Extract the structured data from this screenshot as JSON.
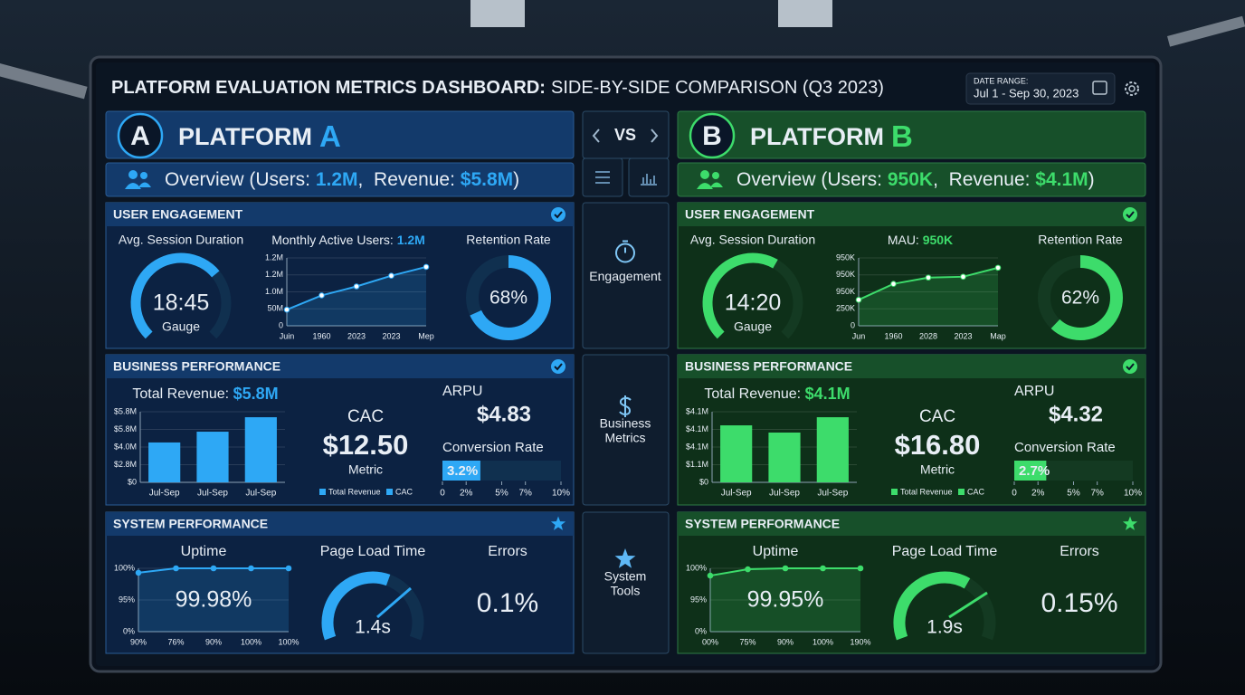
{
  "header": {
    "title_bold": "PLATFORM EVALUATION METRICS DASHBOARD:",
    "title_rest": "SIDE-BY-SIDE COMPARISON (Q3 2023)",
    "date_range_label": "DATE RANGE:",
    "date_range": "Jul 1 - Sep 30, 2023"
  },
  "nav": {
    "vs": "VS",
    "items": [
      [
        "Engagement"
      ],
      [
        "Business",
        "Metrics"
      ],
      [
        "System",
        "Tools"
      ]
    ]
  },
  "platforms": [
    {
      "badge": "A",
      "name": "PLATFORM",
      "letter": "A",
      "color": "#2ea8f5",
      "overview": {
        "prefix": "Overview (Users: ",
        "users": "1.2M",
        "middle": ",  Revenue: ",
        "revenue": "$5.8M",
        "suffix": ")"
      },
      "user_engagement": {
        "title": "USER ENGAGEMENT",
        "session": {
          "label": "Avg. Session Duration",
          "value": "18:45",
          "caption": "Gauge"
        },
        "mau": {
          "label": "Monthly Active Users: ",
          "value": "1.2M",
          "chart": {
            "type": "line",
            "categories": [
              "Juin",
              "1960",
              "2023",
              "2023",
              "Mep"
            ],
            "values": [
              0.95,
              1.79,
              2.32,
              2.95,
              3.47
            ],
            "ylim": [
              0,
              4
            ],
            "yticks": [
              0,
              {
                "value": 1,
                "label": "50M"
              },
              {
                "value": 2,
                "label": "1.0M"
              },
              {
                "value": 3,
                "label": "1.2M"
              },
              {
                "value": 4,
                "label": "1.2M"
              }
            ]
          }
        },
        "retention": {
          "label": "Retention Rate",
          "value": 68,
          "value_label": "68%"
        }
      },
      "business_performance": {
        "title": "BUSINESS PERFORMANCE",
        "revenue": {
          "label": "Total Revenue: ",
          "value": "$5.8M",
          "chart": {
            "type": "bar",
            "categories": [
              "Jul-Sep",
              "Jul-Sep",
              "Jul-Sep"
            ],
            "values": [
              2.26,
              2.87,
              3.69
            ],
            "ylim": [
              0,
              4
            ],
            "yticks": [
              {
                "value": 0,
                "label": "$0"
              },
              {
                "value": 1,
                "label": "$2.8M"
              },
              {
                "value": 2,
                "label": "$4.0M"
              },
              {
                "value": 3,
                "label": "$5.8M"
              },
              {
                "value": 4,
                "label": "$5.8M"
              }
            ],
            "legend": [
              "Total Revenue",
              "CAC"
            ]
          }
        },
        "cac": {
          "label": "CAC",
          "value": "$12.50",
          "caption": "Metric"
        },
        "arpu": {
          "label": "ARPU",
          "value": "$4.83"
        },
        "conversion": {
          "label": "Conversion Rate",
          "value": 3.2,
          "value_label": "3.2%",
          "xlim": [
            0,
            10
          ],
          "xticks": [
            0,
            {
              "value": 2,
              "label": "2%"
            },
            {
              "value": 5,
              "label": "5%"
            },
            {
              "value": 7,
              "label": "7%"
            },
            {
              "value": 10,
              "label": "10%"
            }
          ]
        }
      },
      "system_performance": {
        "title": "SYSTEM PERFORMANCE",
        "uptime": {
          "label": "Uptime",
          "value": "99.98%",
          "chart": {
            "type": "line",
            "categories": [
              "90%",
              "76%",
              "90%",
              "100%",
              "100%"
            ],
            "values": [
              1.86,
              2,
              2,
              2,
              2
            ],
            "ylim": [
              0,
              2
            ],
            "yticks": [
              {
                "value": 0,
                "label": "0%"
              },
              {
                "value": 1,
                "label": "95%"
              },
              {
                "value": 2,
                "label": "100%"
              }
            ]
          }
        },
        "page_load": {
          "label": "Page Load Time",
          "value": "1.4s"
        },
        "errors": {
          "label": "Errors",
          "value": "0.1%"
        }
      }
    },
    {
      "badge": "B",
      "name": "PLATFORM",
      "letter": "B",
      "color": "#3ddc6b",
      "overview": {
        "prefix": "Overview (Users: ",
        "users": "950K",
        "middle": ",  Revenue: ",
        "revenue": "$4.1M",
        "suffix": ")"
      },
      "user_engagement": {
        "title": "USER ENGAGEMENT",
        "session": {
          "label": "Avg. Session Duration",
          "value": "14:20",
          "caption": "Gauge"
        },
        "mau": {
          "label": "MAU: ",
          "value": "950K",
          "chart": {
            "type": "line",
            "categories": [
              "Jun",
              "1960",
              "2028",
              "2023",
              "Map"
            ],
            "values": [
              1.53,
              2.47,
              2.84,
              2.89,
              3.42
            ],
            "ylim": [
              0,
              4
            ],
            "yticks": [
              0,
              {
                "value": 1,
                "label": "250K"
              },
              {
                "value": 2,
                "label": "950K"
              },
              {
                "value": 3,
                "label": "950K"
              },
              {
                "value": 4,
                "label": "950K"
              }
            ]
          }
        },
        "retention": {
          "label": "Retention Rate",
          "value": 62,
          "value_label": "62%"
        }
      },
      "business_performance": {
        "title": "BUSINESS PERFORMANCE",
        "revenue": {
          "label": "Total Revenue: ",
          "value": "$4.1M",
          "chart": {
            "type": "bar",
            "categories": [
              "Jul-Sep",
              "Jul-Sep",
              "Jul-Sep"
            ],
            "values": [
              3.23,
              2.82,
              3.69
            ],
            "ylim": [
              0,
              4
            ],
            "yticks": [
              {
                "value": 0,
                "label": "$0"
              },
              {
                "value": 1,
                "label": "$1.1M"
              },
              {
                "value": 2,
                "label": "$4.1M"
              },
              {
                "value": 3,
                "label": "$4.1M"
              },
              {
                "value": 4,
                "label": "$4.1M"
              }
            ],
            "legend": [
              "Total Revenue",
              "CAC"
            ]
          }
        },
        "cac": {
          "label": "CAC",
          "value": "$16.80",
          "caption": "Metric"
        },
        "arpu": {
          "label": "ARPU",
          "value": "$4.32"
        },
        "conversion": {
          "label": "Conversion Rate",
          "value": 2.7,
          "value_label": "2.7%",
          "xlim": [
            0,
            10
          ],
          "xticks": [
            0,
            {
              "value": 2,
              "label": "2%"
            },
            {
              "value": 5,
              "label": "5%"
            },
            {
              "value": 7,
              "label": "7%"
            },
            {
              "value": 10,
              "label": "10%"
            }
          ]
        }
      },
      "system_performance": {
        "title": "SYSTEM PERFORMANCE",
        "uptime": {
          "label": "Uptime",
          "value": "99.95%",
          "chart": {
            "type": "line",
            "categories": [
              "00%",
              "75%",
              "90%",
              "100%",
              "190%"
            ],
            "values": [
              1.77,
              1.97,
              2,
              2,
              2
            ],
            "ylim": [
              0,
              2
            ],
            "yticks": [
              {
                "value": 0,
                "label": "0%"
              },
              {
                "value": 1,
                "label": "95%"
              },
              {
                "value": 2,
                "label": "100%"
              }
            ]
          }
        },
        "page_load": {
          "label": "Page Load Time",
          "value": "1.9s"
        },
        "errors": {
          "label": "Errors",
          "value": "0.15%"
        }
      }
    }
  ]
}
